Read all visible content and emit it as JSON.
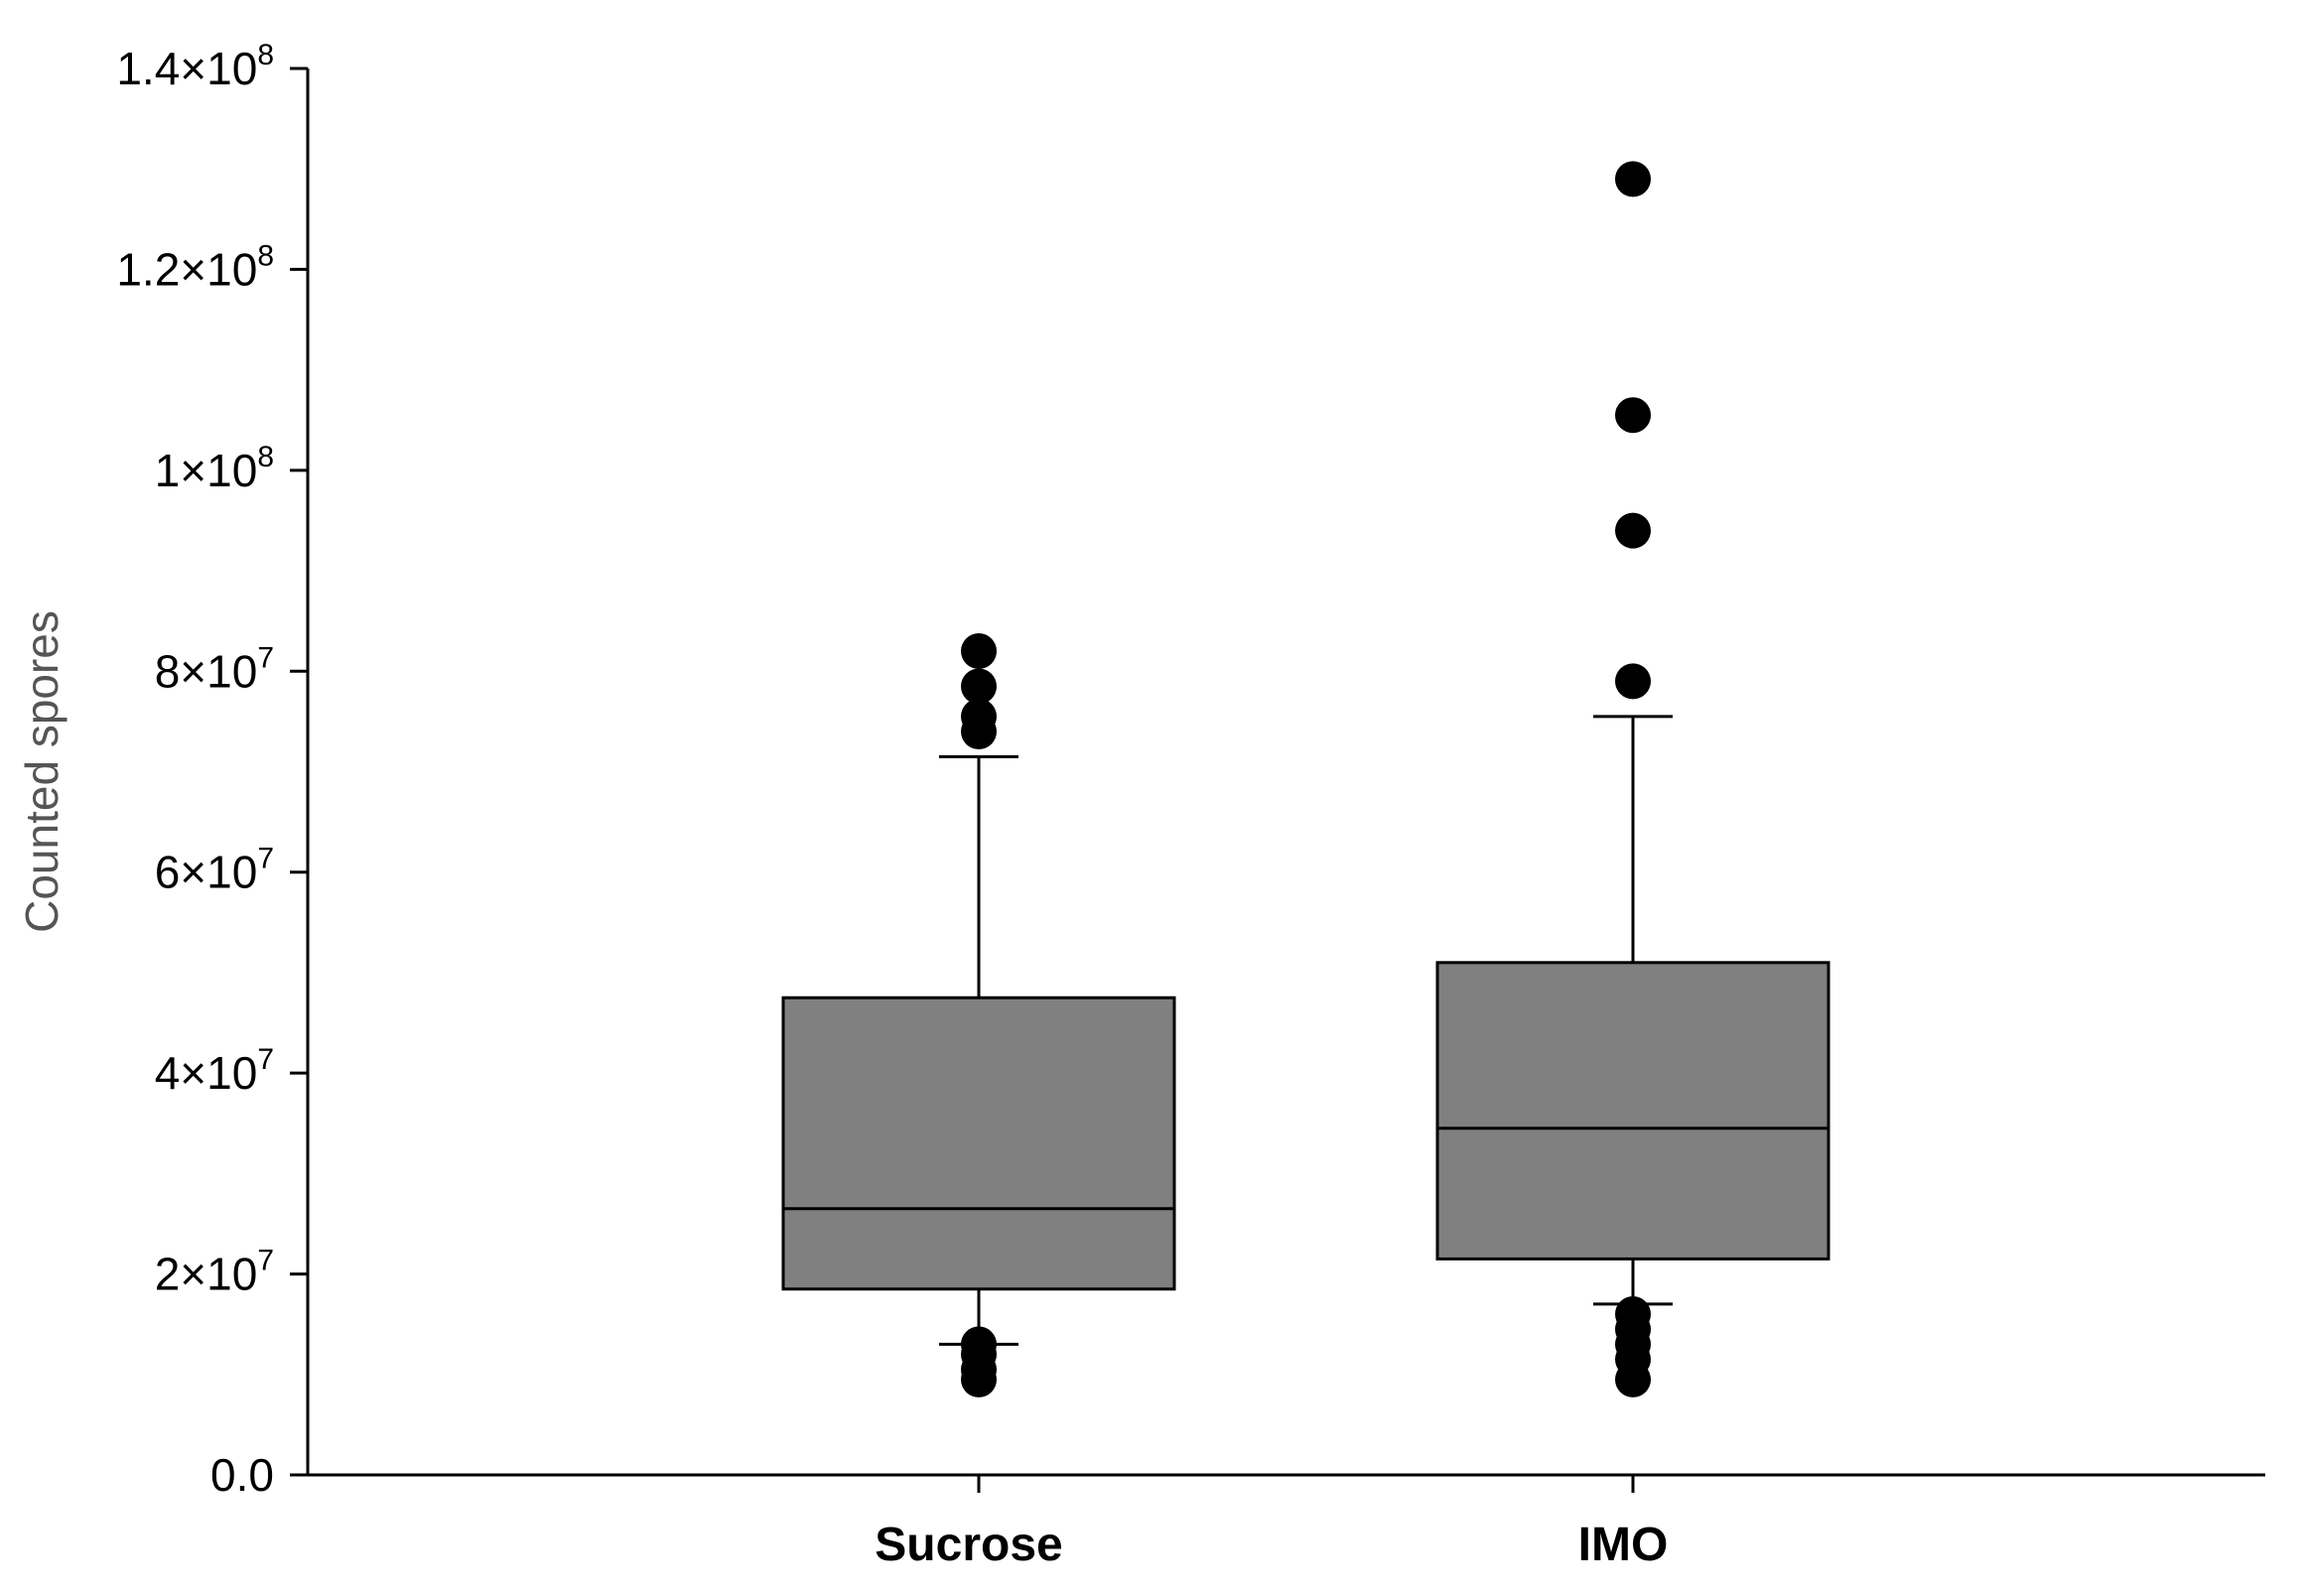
{
  "chart_data": {
    "type": "box",
    "title": "",
    "xlabel": "",
    "ylabel": "Counted spores",
    "ylim": [
      0,
      140000000
    ],
    "y_ticks": [
      {
        "value": 0,
        "mantissa": "0.0",
        "exponent": ""
      },
      {
        "value": 20000000,
        "mantissa": "2×10",
        "exponent": "7"
      },
      {
        "value": 40000000,
        "mantissa": "4×10",
        "exponent": "7"
      },
      {
        "value": 60000000,
        "mantissa": "6×10",
        "exponent": "7"
      },
      {
        "value": 80000000,
        "mantissa": "8×10",
        "exponent": "7"
      },
      {
        "value": 100000000,
        "mantissa": "1×10",
        "exponent": "8"
      },
      {
        "value": 120000000,
        "mantissa": "1.2×10",
        "exponent": "8"
      },
      {
        "value": 140000000,
        "mantissa": "1.4×10",
        "exponent": "8"
      }
    ],
    "categories": [
      "Sucrose",
      "IMO"
    ],
    "boxes": [
      {
        "category": "Sucrose",
        "whisker_low": 13000000,
        "q1": 18500000,
        "median": 26500000,
        "q3": 47500000,
        "whisker_high": 71500000,
        "outliers": [
          82000000,
          78500000,
          75500000,
          74000000,
          13000000,
          12000000,
          10500000,
          9500000
        ]
      },
      {
        "category": "IMO",
        "whisker_low": 17000000,
        "q1": 21500000,
        "median": 34500000,
        "q3": 51000000,
        "whisker_high": 75500000,
        "outliers": [
          129000000,
          105500000,
          94000000,
          79000000,
          16000000,
          14500000,
          13000000,
          11500000,
          9500000
        ]
      }
    ],
    "box_color": "#808080",
    "point_color": "#000000",
    "grid": false,
    "legend": "none"
  }
}
